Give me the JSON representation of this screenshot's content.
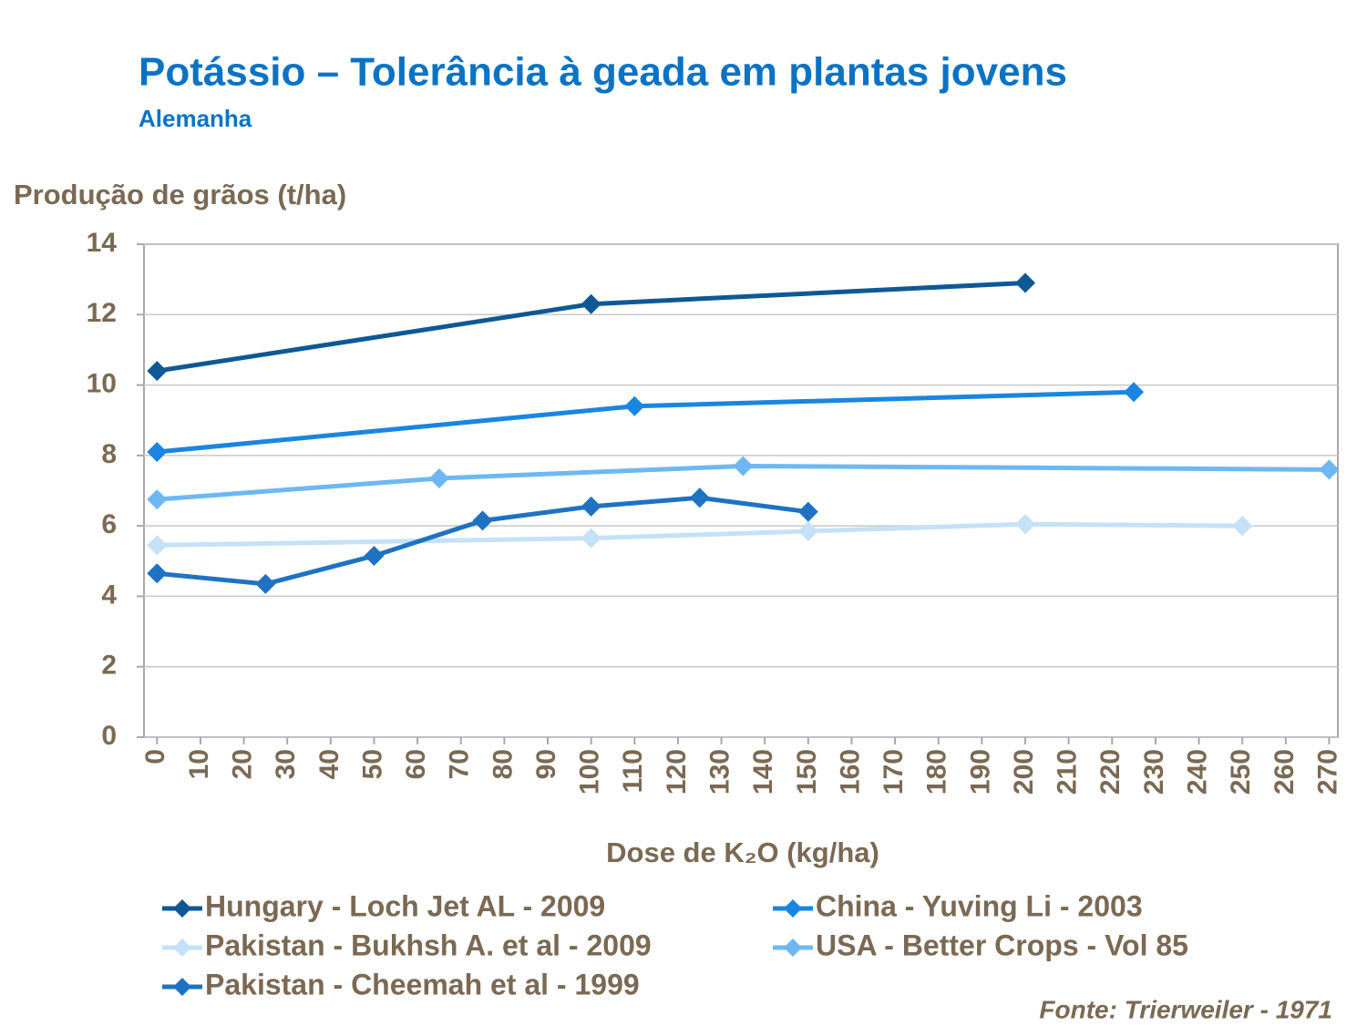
{
  "chart_data": {
    "type": "line",
    "title": "Potássio – Tolerância à geada em plantas jovens",
    "subtitle": "Alemanha",
    "y_label": "Produção de grãos (t/ha)",
    "x_label": "Dose de K₂O (kg/ha)",
    "source": "Fonte: Trierweiler - 1971",
    "xlim": [
      -3,
      272
    ],
    "xticks": [
      0,
      10,
      20,
      30,
      40,
      50,
      60,
      70,
      80,
      90,
      100,
      110,
      120,
      130,
      140,
      150,
      160,
      170,
      180,
      190,
      200,
      210,
      220,
      230,
      240,
      250,
      260,
      270
    ],
    "ylim": [
      0,
      14
    ],
    "yticks": [
      0,
      2,
      4,
      6,
      8,
      10,
      12,
      14
    ],
    "grid": true,
    "legend": "bottom",
    "series": [
      {
        "name": "Hungary - Loch Jet AL - 2009",
        "color": "#0f5896",
        "x": [
          0,
          100,
          200
        ],
        "values": [
          10.4,
          12.3,
          12.9
        ]
      },
      {
        "name": "China - Yuving Li - 2003",
        "color": "#1a86e0",
        "x": [
          0,
          110,
          225
        ],
        "values": [
          8.1,
          9.4,
          9.8
        ]
      },
      {
        "name": "Pakistan - Bukhsh A. et al - 2009",
        "color": "#c4e1f8",
        "x": [
          0,
          100,
          150,
          200,
          250
        ],
        "values": [
          5.45,
          5.65,
          5.85,
          6.05,
          6.0
        ]
      },
      {
        "name": "USA - Better Crops - Vol 85",
        "color": "#6db8f2",
        "x": [
          0,
          65,
          135,
          270
        ],
        "values": [
          6.75,
          7.35,
          7.7,
          7.6
        ]
      },
      {
        "name": "Pakistan - Cheemah et al - 1999",
        "color": "#1f72c2",
        "x": [
          0,
          25,
          50,
          75,
          100,
          125,
          150
        ],
        "values": [
          4.65,
          4.35,
          5.15,
          6.15,
          6.55,
          6.8,
          6.4
        ]
      }
    ]
  }
}
